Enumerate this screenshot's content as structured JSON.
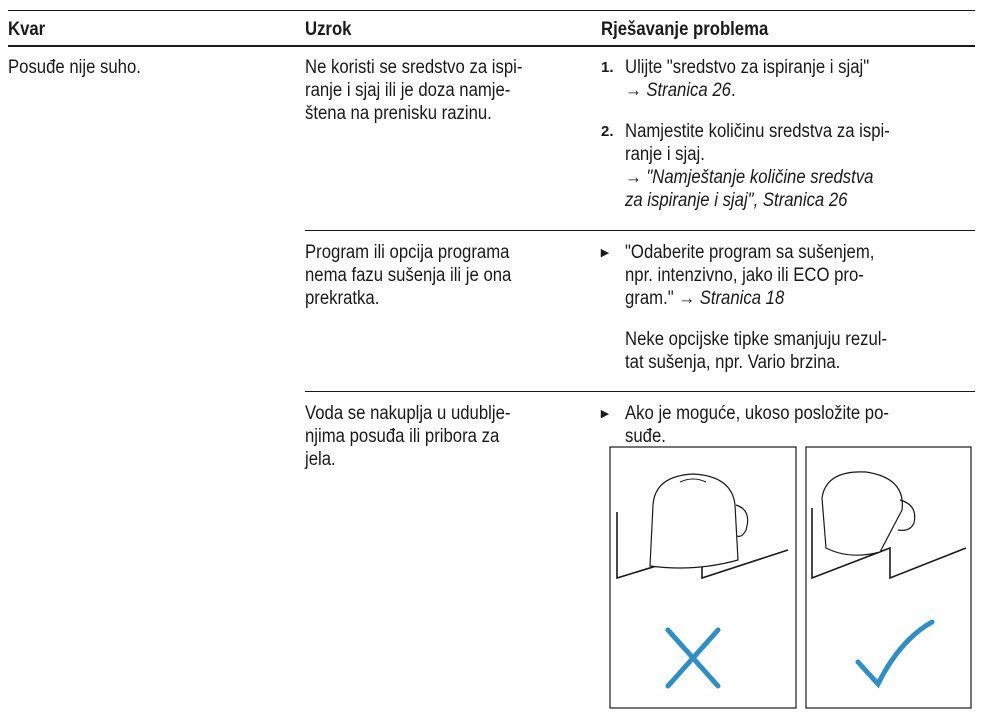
{
  "table": {
    "headers": [
      "Kvar",
      "Uzrok",
      "Rješavanje problema"
    ],
    "fault": "Posuđe nije suho.",
    "rows": [
      {
        "cause": [
          "Ne koristi se sredstvo za ispi-",
          "ranje i sjaj ili je doza namje-",
          "štena na prenisku razinu."
        ],
        "remedy": [
          {
            "marker": "1.",
            "lines": [
              [
                "Ulijte \"sredstvo za ispiranje i sjaj\""
              ],
              [
                "→ ",
                {
                  "em": "Stranica 26"
                },
                "."
              ]
            ]
          },
          {
            "marker": "2.",
            "lines": [
              [
                "Namjestite količinu sredstva za ispi-"
              ],
              [
                "ranje i sjaj."
              ],
              [
                "→ ",
                {
                  "em": "\"Namještanje količine sredstva"
                }
              ],
              [
                {
                  "em": "za ispiranje i sjaj\", Stranica 26"
                }
              ]
            ]
          }
        ]
      },
      {
        "cause": [
          "Program ili opcija programa",
          "nema fazu sušenja ili je ona",
          "prekratka."
        ],
        "remedy": [
          {
            "marker": "▸",
            "lines": [
              [
                "\"Odaberite program sa sušenjem,"
              ],
              [
                "npr. intenzivno, jako ili ECO pro-"
              ],
              [
                "gram.\" → ",
                {
                  "em": "Stranica 18"
                }
              ]
            ]
          },
          {
            "lines": [
              [
                "Neke opcijske tipke smanjuju rezul-"
              ],
              [
                "tat sušenja, npr. Vario brzina."
              ]
            ]
          }
        ]
      },
      {
        "cause": [
          "Voda se nakuplja u udublje-",
          "njima posuđa ili pribora za",
          "jela."
        ],
        "remedy": [
          {
            "marker": "▸",
            "lines": [
              [
                "Ako je moguće, ukoso posložite po-"
              ],
              [
                "suđe."
              ]
            ]
          }
        ]
      }
    ]
  }
}
